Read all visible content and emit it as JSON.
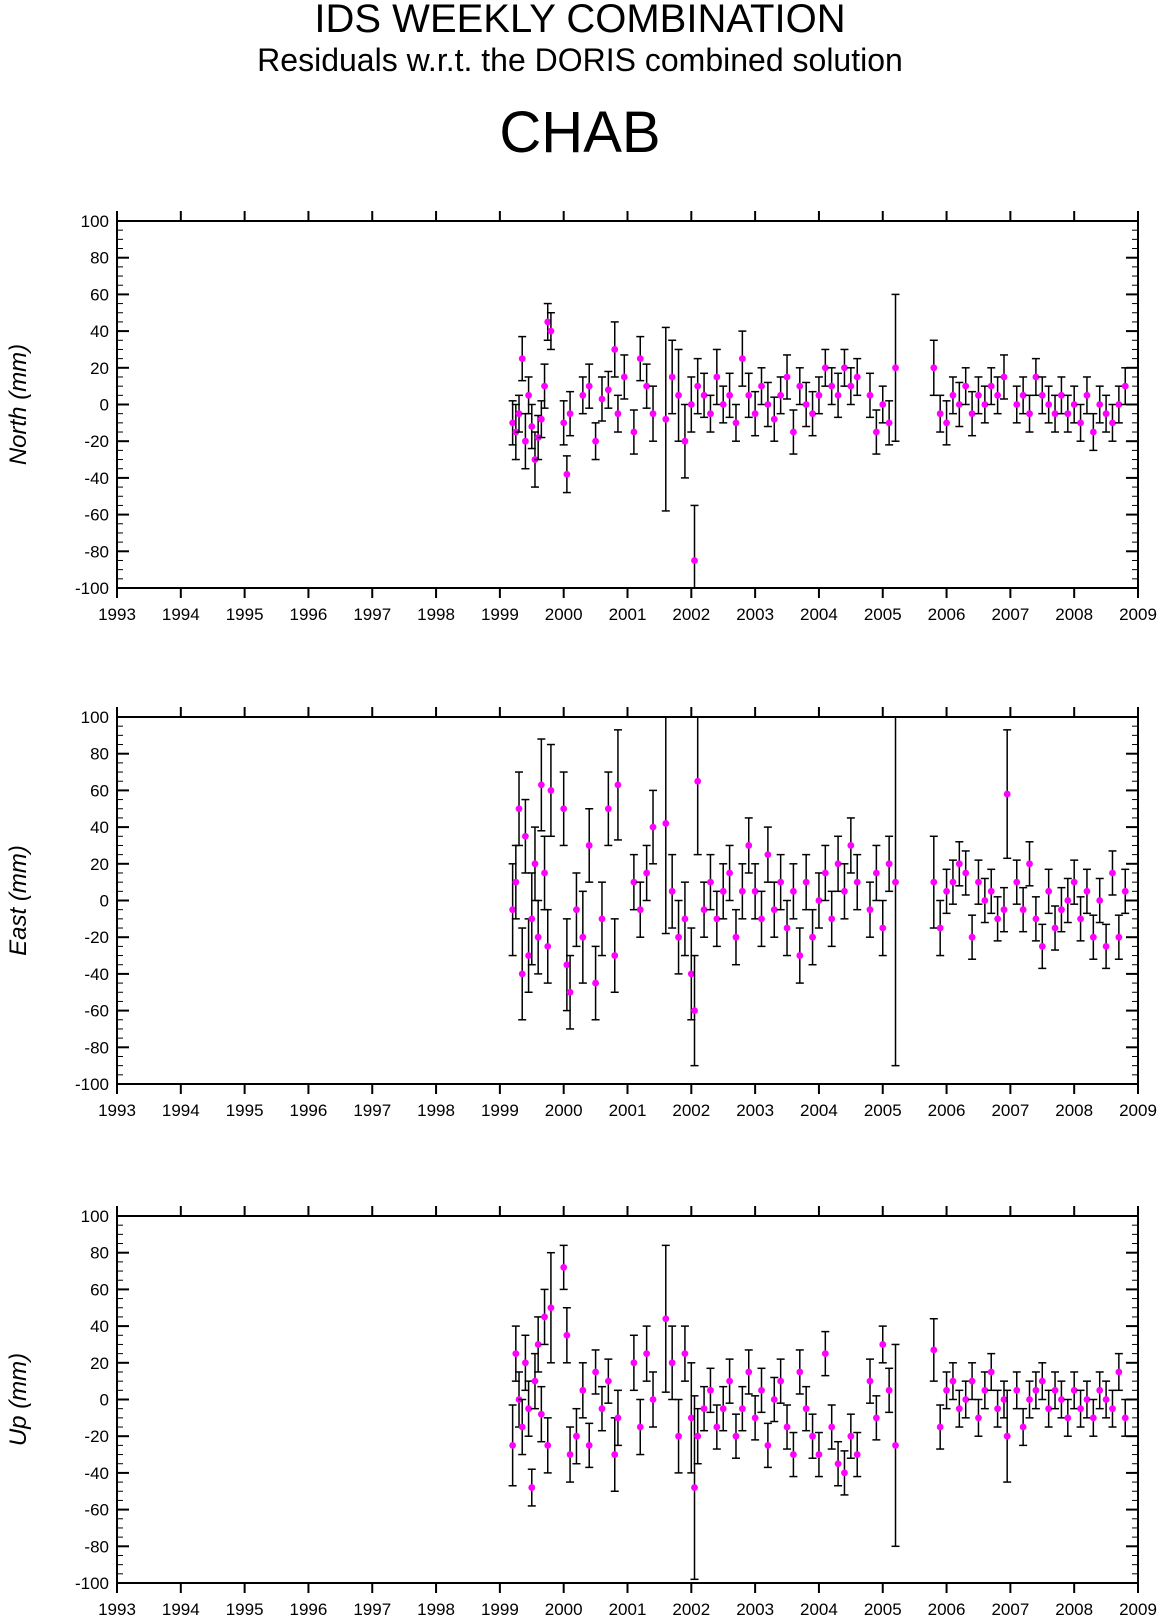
{
  "header": {
    "title": "IDS WEEKLY COMBINATION",
    "subtitle": "Residuals w.r.t. the DORIS combined solution",
    "station": "CHAB"
  },
  "colors": {
    "point": "#ff00ff",
    "errorbar": "#000000",
    "axes": "#000000"
  },
  "chart_data": [
    {
      "type": "scatter",
      "ylabel": "North (mm)",
      "xlim": [
        1993,
        2009
      ],
      "ylim": [
        -100,
        100
      ],
      "xticks": [
        "1993",
        "1994",
        "1995",
        "1996",
        "1997",
        "1998",
        "1999",
        "2000",
        "2001",
        "2002",
        "2003",
        "2004",
        "2005",
        "2006",
        "2007",
        "2008",
        "2009"
      ],
      "yticks": [
        "100",
        "80",
        "60",
        "40",
        "20",
        "0",
        "-20",
        "-40",
        "-60",
        "-80",
        "-100"
      ],
      "grid": false,
      "series": [
        {
          "x": [
            1999.2,
            1999.25,
            1999.3,
            1999.35,
            1999.4,
            1999.45,
            1999.5,
            1999.55,
            1999.6,
            1999.65,
            1999.7,
            1999.75,
            1999.8,
            2000.0,
            2000.05,
            2000.1,
            2000.3,
            2000.4,
            2000.5,
            2000.6,
            2000.7,
            2000.8,
            2000.85,
            2000.95,
            2001.1,
            2001.2,
            2001.3,
            2001.4,
            2001.6,
            2001.7,
            2001.8,
            2001.9,
            2002.0,
            2002.05,
            2002.1,
            2002.2,
            2002.3,
            2002.4,
            2002.5,
            2002.6,
            2002.7,
            2002.8,
            2002.9,
            2003.0,
            2003.1,
            2003.2,
            2003.3,
            2003.4,
            2003.5,
            2003.6,
            2003.7,
            2003.8,
            2003.9,
            2004.0,
            2004.1,
            2004.2,
            2004.3,
            2004.4,
            2004.5,
            2004.6,
            2004.8,
            2004.9,
            2005.0,
            2005.1,
            2005.2,
            2005.8,
            2005.9,
            2006.0,
            2006.1,
            2006.2,
            2006.3,
            2006.4,
            2006.5,
            2006.6,
            2006.7,
            2006.8,
            2006.9,
            2007.1,
            2007.2,
            2007.3,
            2007.4,
            2007.5,
            2007.6,
            2007.7,
            2007.8,
            2007.9,
            2008.0,
            2008.1,
            2008.2,
            2008.3,
            2008.4,
            2008.5,
            2008.6,
            2008.7,
            2008.8
          ],
          "y": [
            -10,
            -15,
            -5,
            25,
            -20,
            5,
            -12,
            -30,
            -18,
            -8,
            10,
            45,
            40,
            -10,
            -38,
            -5,
            5,
            10,
            -20,
            3,
            8,
            30,
            -5,
            15,
            -15,
            25,
            10,
            -5,
            -8,
            15,
            5,
            -20,
            0,
            -85,
            10,
            5,
            -5,
            15,
            0,
            5,
            -10,
            25,
            5,
            -5,
            10,
            0,
            -8,
            5,
            15,
            -15,
            10,
            0,
            -5,
            5,
            20,
            10,
            5,
            20,
            10,
            15,
            5,
            -15,
            0,
            -10,
            20,
            20,
            -5,
            -10,
            5,
            0,
            10,
            -5,
            5,
            0,
            10,
            5,
            15,
            0,
            5,
            -5,
            15,
            5,
            0,
            -5,
            5,
            -5,
            0,
            -10,
            5,
            -15,
            0,
            -5,
            -10,
            0,
            10
          ],
          "err": [
            12,
            15,
            10,
            12,
            15,
            10,
            12,
            15,
            12,
            10,
            12,
            10,
            10,
            12,
            10,
            12,
            10,
            12,
            10,
            12,
            10,
            15,
            10,
            12,
            12,
            12,
            12,
            15,
            50,
            20,
            25,
            20,
            15,
            30,
            15,
            12,
            10,
            15,
            10,
            12,
            10,
            15,
            12,
            12,
            10,
            12,
            12,
            10,
            12,
            12,
            10,
            12,
            12,
            10,
            10,
            10,
            12,
            10,
            10,
            10,
            12,
            12,
            10,
            12,
            40,
            15,
            10,
            12,
            10,
            12,
            10,
            12,
            10,
            10,
            10,
            10,
            12,
            10,
            10,
            10,
            10,
            10,
            10,
            10,
            10,
            10,
            10,
            10,
            10,
            10,
            10,
            10,
            10,
            10,
            10
          ]
        }
      ]
    },
    {
      "type": "scatter",
      "ylabel": "East (mm)",
      "xlim": [
        1993,
        2009
      ],
      "ylim": [
        -100,
        100
      ],
      "xticks": [
        "1993",
        "1994",
        "1995",
        "1996",
        "1997",
        "1998",
        "1999",
        "2000",
        "2001",
        "2002",
        "2003",
        "2004",
        "2005",
        "2006",
        "2007",
        "2008",
        "2009"
      ],
      "yticks": [
        "100",
        "80",
        "60",
        "40",
        "20",
        "0",
        "-20",
        "-40",
        "-60",
        "-80",
        "-100"
      ],
      "grid": false,
      "series": [
        {
          "x": [
            1999.2,
            1999.25,
            1999.3,
            1999.35,
            1999.4,
            1999.45,
            1999.5,
            1999.55,
            1999.6,
            1999.65,
            1999.7,
            1999.75,
            1999.8,
            2000.0,
            2000.05,
            2000.1,
            2000.2,
            2000.3,
            2000.4,
            2000.5,
            2000.6,
            2000.7,
            2000.8,
            2000.85,
            2001.1,
            2001.2,
            2001.3,
            2001.4,
            2001.6,
            2001.7,
            2001.8,
            2001.9,
            2002.0,
            2002.05,
            2002.1,
            2002.2,
            2002.3,
            2002.4,
            2002.5,
            2002.6,
            2002.7,
            2002.8,
            2002.9,
            2003.0,
            2003.1,
            2003.2,
            2003.3,
            2003.4,
            2003.5,
            2003.6,
            2003.7,
            2003.8,
            2003.9,
            2004.0,
            2004.1,
            2004.2,
            2004.3,
            2004.4,
            2004.5,
            2004.6,
            2004.8,
            2004.9,
            2005.0,
            2005.1,
            2005.2,
            2005.8,
            2005.9,
            2006.0,
            2006.1,
            2006.2,
            2006.3,
            2006.4,
            2006.5,
            2006.6,
            2006.7,
            2006.8,
            2006.9,
            2006.95,
            2007.1,
            2007.2,
            2007.3,
            2007.4,
            2007.5,
            2007.6,
            2007.7,
            2007.8,
            2007.9,
            2008.0,
            2008.1,
            2008.2,
            2008.3,
            2008.4,
            2008.5,
            2008.6,
            2008.7,
            2008.8
          ],
          "y": [
            -5,
            10,
            50,
            -40,
            35,
            -30,
            -10,
            20,
            -20,
            63,
            15,
            -25,
            60,
            50,
            -35,
            -50,
            -5,
            -20,
            30,
            -45,
            -10,
            50,
            -30,
            63,
            10,
            -5,
            15,
            40,
            42,
            5,
            -20,
            -10,
            -40,
            -60,
            65,
            -5,
            10,
            -10,
            5,
            15,
            -20,
            5,
            30,
            5,
            -10,
            25,
            -5,
            10,
            -15,
            5,
            -30,
            10,
            -20,
            0,
            15,
            -10,
            20,
            5,
            30,
            10,
            -5,
            15,
            -15,
            20,
            10,
            10,
            -15,
            5,
            10,
            20,
            15,
            -20,
            10,
            0,
            5,
            -10,
            -5,
            58,
            10,
            -5,
            20,
            -10,
            -25,
            5,
            -15,
            -5,
            0,
            10,
            -10,
            5,
            -20,
            0,
            -25,
            15,
            -20,
            5
          ],
          "err": [
            25,
            20,
            20,
            25,
            20,
            20,
            25,
            20,
            20,
            25,
            20,
            20,
            25,
            20,
            25,
            20,
            20,
            25,
            20,
            20,
            20,
            20,
            20,
            30,
            15,
            15,
            15,
            20,
            60,
            20,
            20,
            20,
            25,
            30,
            40,
            15,
            15,
            15,
            15,
            15,
            15,
            15,
            15,
            15,
            15,
            15,
            15,
            15,
            15,
            15,
            15,
            15,
            15,
            15,
            15,
            15,
            15,
            15,
            15,
            15,
            15,
            15,
            15,
            15,
            100,
            25,
            15,
            12,
            12,
            12,
            12,
            12,
            12,
            12,
            12,
            12,
            12,
            35,
            12,
            12,
            12,
            12,
            12,
            12,
            12,
            12,
            12,
            12,
            12,
            12,
            12,
            12,
            12,
            12,
            12,
            12
          ]
        }
      ]
    },
    {
      "type": "scatter",
      "ylabel": "Up (mm)",
      "xlim": [
        1993,
        2009
      ],
      "ylim": [
        -100,
        100
      ],
      "xticks": [
        "1993",
        "1994",
        "1995",
        "1996",
        "1997",
        "1998",
        "1999",
        "2000",
        "2001",
        "2002",
        "2003",
        "2004",
        "2005",
        "2006",
        "2007",
        "2008",
        "2009"
      ],
      "yticks": [
        "100",
        "80",
        "60",
        "40",
        "20",
        "0",
        "-20",
        "-40",
        "-60",
        "-80",
        "-100"
      ],
      "grid": false,
      "series": [
        {
          "x": [
            1999.2,
            1999.25,
            1999.3,
            1999.35,
            1999.4,
            1999.45,
            1999.5,
            1999.55,
            1999.6,
            1999.65,
            1999.7,
            1999.75,
            1999.8,
            2000.0,
            2000.05,
            2000.1,
            2000.2,
            2000.3,
            2000.4,
            2000.5,
            2000.6,
            2000.7,
            2000.8,
            2000.85,
            2001.1,
            2001.2,
            2001.3,
            2001.4,
            2001.6,
            2001.7,
            2001.8,
            2001.9,
            2002.0,
            2002.05,
            2002.1,
            2002.2,
            2002.3,
            2002.4,
            2002.5,
            2002.6,
            2002.7,
            2002.8,
            2002.9,
            2003.0,
            2003.1,
            2003.2,
            2003.3,
            2003.4,
            2003.5,
            2003.6,
            2003.7,
            2003.8,
            2003.9,
            2004.0,
            2004.1,
            2004.2,
            2004.3,
            2004.4,
            2004.5,
            2004.6,
            2004.8,
            2004.9,
            2005.0,
            2005.1,
            2005.2,
            2005.8,
            2005.9,
            2006.0,
            2006.1,
            2006.2,
            2006.3,
            2006.4,
            2006.5,
            2006.6,
            2006.7,
            2006.8,
            2006.9,
            2006.95,
            2007.1,
            2007.2,
            2007.3,
            2007.4,
            2007.5,
            2007.6,
            2007.7,
            2007.8,
            2007.9,
            2008.0,
            2008.1,
            2008.2,
            2008.3,
            2008.4,
            2008.5,
            2008.6,
            2008.7,
            2008.8
          ],
          "y": [
            -25,
            25,
            0,
            -15,
            20,
            -5,
            -48,
            10,
            30,
            -8,
            45,
            -25,
            50,
            72,
            35,
            -30,
            -20,
            5,
            -25,
            15,
            -5,
            10,
            -30,
            -10,
            20,
            -15,
            25,
            0,
            44,
            20,
            -20,
            25,
            -10,
            -48,
            -20,
            -5,
            5,
            -15,
            -5,
            10,
            -20,
            -5,
            15,
            -10,
            5,
            -25,
            0,
            10,
            -15,
            -30,
            15,
            -5,
            -20,
            -30,
            25,
            -15,
            -35,
            -40,
            -20,
            -30,
            10,
            -10,
            30,
            5,
            -25,
            27,
            -15,
            5,
            10,
            -5,
            0,
            10,
            -10,
            5,
            15,
            -5,
            0,
            -20,
            5,
            -15,
            0,
            5,
            10,
            -5,
            5,
            0,
            -10,
            5,
            -5,
            0,
            -10,
            5,
            0,
            -5,
            15,
            -10
          ],
          "err": [
            22,
            15,
            15,
            15,
            15,
            15,
            10,
            15,
            15,
            15,
            15,
            15,
            30,
            12,
            15,
            15,
            15,
            15,
            12,
            12,
            12,
            12,
            20,
            15,
            15,
            15,
            15,
            15,
            40,
            20,
            20,
            15,
            30,
            50,
            15,
            12,
            12,
            12,
            12,
            12,
            12,
            12,
            12,
            12,
            12,
            12,
            12,
            12,
            12,
            12,
            12,
            12,
            12,
            12,
            12,
            12,
            12,
            12,
            12,
            12,
            12,
            12,
            10,
            12,
            55,
            17,
            12,
            10,
            10,
            10,
            10,
            10,
            10,
            10,
            10,
            10,
            10,
            25,
            10,
            10,
            10,
            10,
            10,
            10,
            10,
            10,
            10,
            10,
            10,
            10,
            10,
            10,
            10,
            10,
            10,
            10
          ]
        }
      ]
    }
  ]
}
